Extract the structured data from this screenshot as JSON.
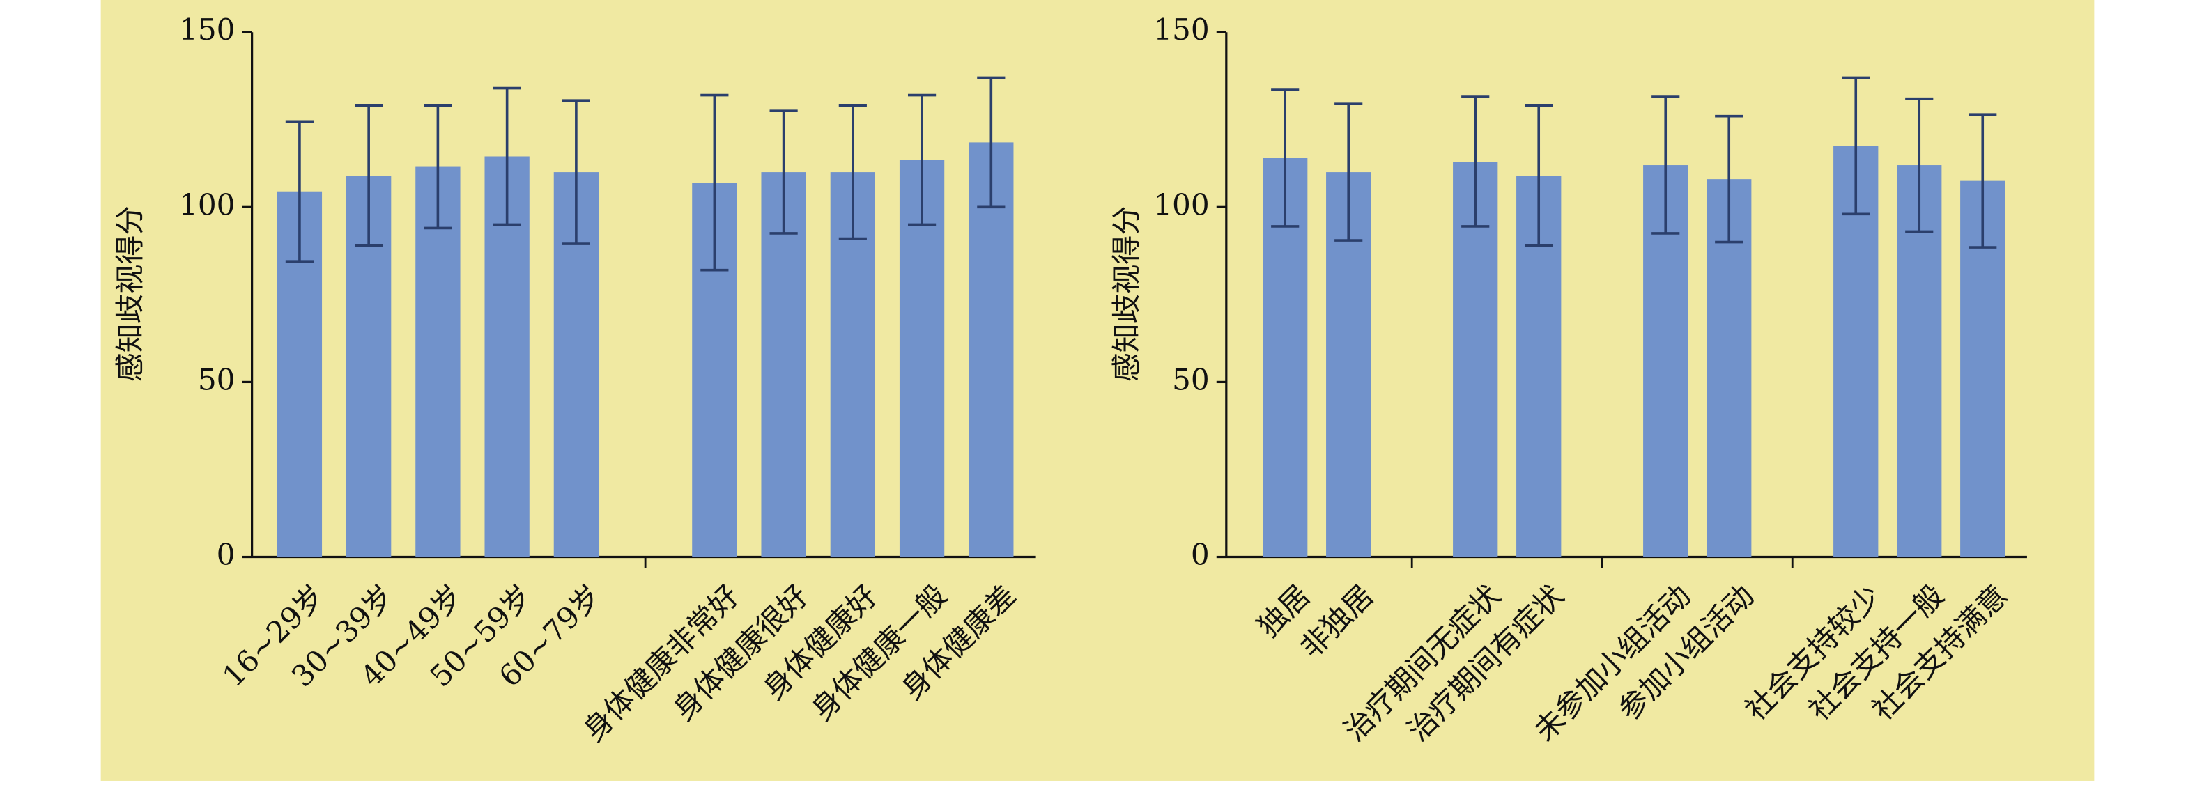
{
  "chart_data": [
    {
      "type": "bar",
      "y_label": "感知歧视得分",
      "categories": [
        "16~29岁",
        "30~39岁",
        "40~49岁",
        "50~59岁",
        "60~79岁",
        null,
        "身体健康非常好",
        "身体健康很好",
        "身体健康好",
        "身体健康一般",
        "身体健康差"
      ],
      "values": [
        104.5,
        109,
        111.5,
        114.5,
        110,
        null,
        107,
        110,
        110,
        113.5,
        118.5
      ],
      "errors": [
        20,
        20,
        17.5,
        19.5,
        20.5,
        null,
        25,
        17.5,
        19,
        18.5,
        18.5
      ],
      "color": "#7192cb",
      "error_color": "#2b3f6c",
      "ylim": [
        0,
        150
      ],
      "yticks": [
        0,
        50,
        100,
        150
      ]
    },
    {
      "type": "bar",
      "y_label": "感知歧视得分",
      "categories": [
        "独居",
        "非独居",
        null,
        "治疗期间无症状",
        "治疗期间有症状",
        null,
        "未参加小组活动",
        "参加小组活动",
        null,
        "社会支持较少",
        "社会支持一般",
        "社会支持满意"
      ],
      "values": [
        114,
        110,
        null,
        113,
        109,
        null,
        112,
        108,
        null,
        117.5,
        112,
        107.5
      ],
      "errors": [
        19.5,
        19.5,
        null,
        18.5,
        20,
        null,
        19.5,
        18,
        null,
        19.5,
        19,
        19
      ],
      "color": "#7192cb",
      "error_color": "#2b3f6c",
      "ylim": [
        0,
        150
      ],
      "yticks": [
        0,
        50,
        100,
        150
      ]
    }
  ]
}
